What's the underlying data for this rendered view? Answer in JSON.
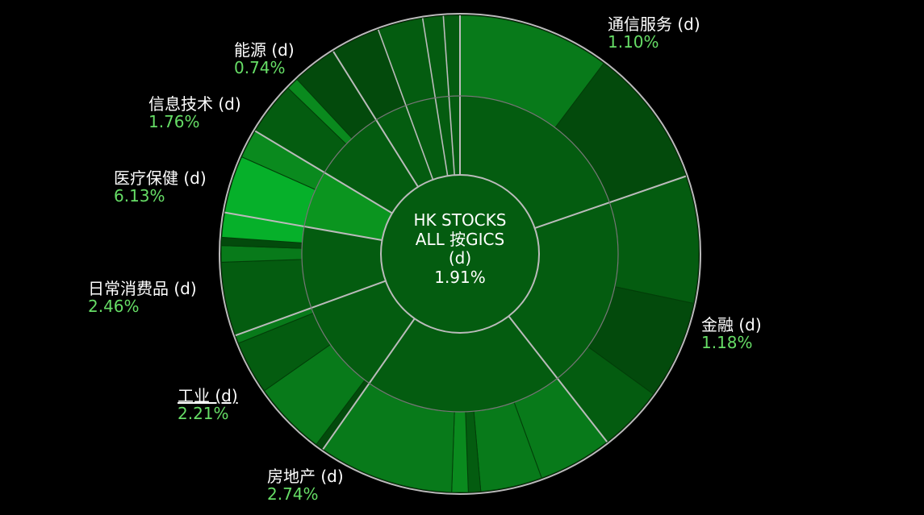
{
  "chart_data": {
    "type": "sunburst",
    "center": {
      "title_lines": [
        "HK STOCKS",
        "ALL 按GICS",
        "(d)"
      ],
      "value": "1.91%"
    },
    "series": [
      {
        "name": "通信服务 (d)",
        "value": "1.10%",
        "change": 1.1
      },
      {
        "name": "金融 (d)",
        "value": "1.18%",
        "change": 1.18
      },
      {
        "name": "房地产 (d)",
        "value": "2.74%",
        "change": 2.74
      },
      {
        "name": "工业 (d)",
        "value": "2.21%",
        "change": 2.21
      },
      {
        "name": "日常消费品 (d)",
        "value": "2.46%",
        "change": 2.46
      },
      {
        "name": "医疗保健 (d)",
        "value": "6.13%",
        "change": 6.13
      },
      {
        "name": "信息技术 (d)",
        "value": "1.76%",
        "change": 1.76
      },
      {
        "name": "能源 (d)",
        "value": "0.74%",
        "change": 0.74
      }
    ],
    "colors": {
      "background": "#000000",
      "positive_light": "#06b02a",
      "positive_mid": "#0a8a1e",
      "positive_dark": "#045c10",
      "divider": "#bbbbbb",
      "label_text": "#ffffff",
      "value_text": "#66dd66"
    }
  }
}
